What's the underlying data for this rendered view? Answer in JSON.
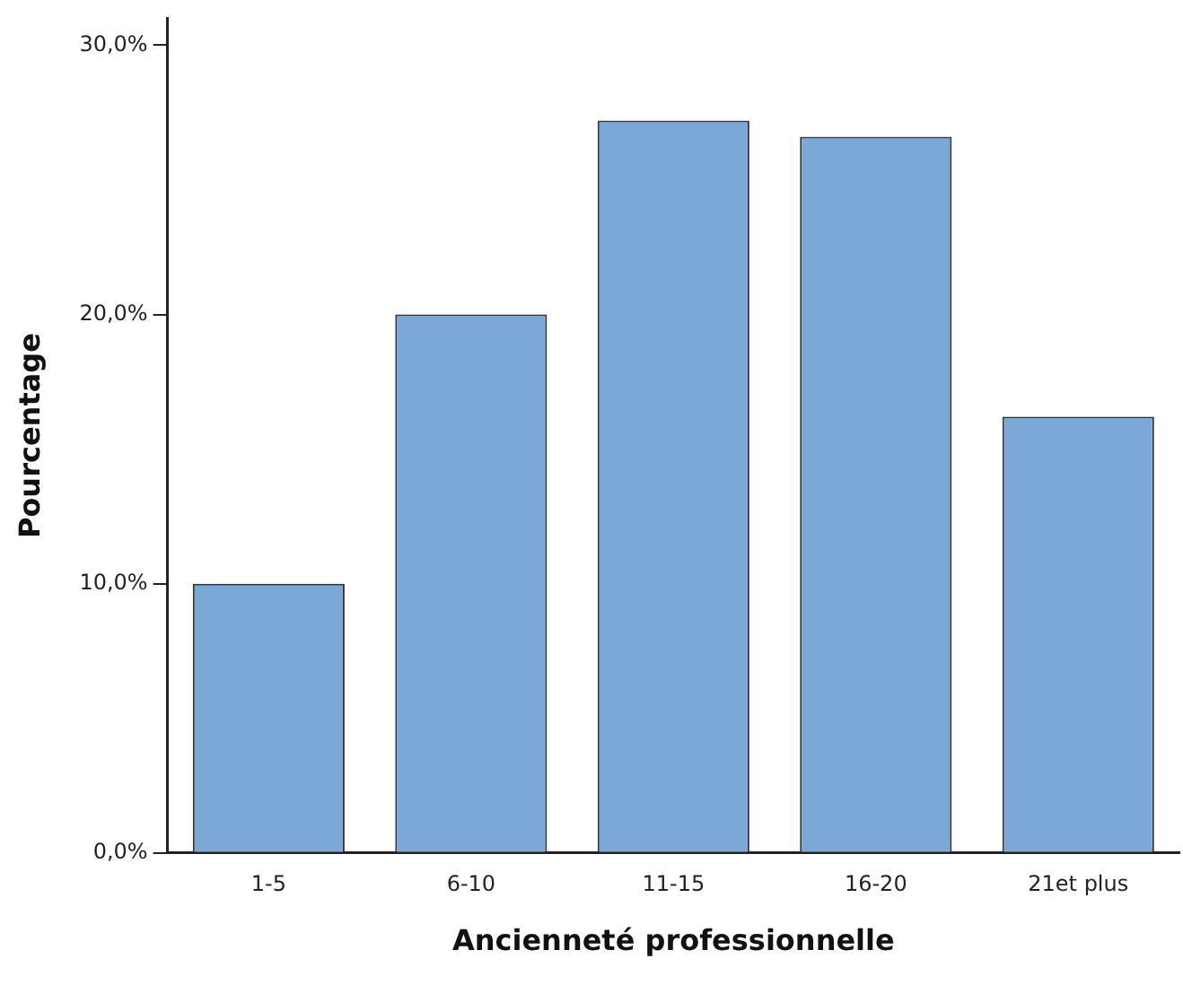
{
  "chart_data": {
    "type": "bar",
    "xlabel": "Ancienneté professionnelle",
    "ylabel": "Pourcentage",
    "categories": [
      "1-5",
      "6-10",
      "11-15",
      "16-20",
      "21et plus"
    ],
    "values": [
      10.0,
      20.0,
      27.2,
      26.6,
      16.2
    ],
    "color": "#7ba8d6",
    "ylim": [
      0,
      31
    ],
    "yticks": [
      {
        "value": 0,
        "label": "0,0%"
      },
      {
        "value": 10,
        "label": "10,0%"
      },
      {
        "value": 20,
        "label": "20,0%"
      },
      {
        "value": 30,
        "label": "30,0%"
      }
    ],
    "grid": false,
    "legend": false
  }
}
